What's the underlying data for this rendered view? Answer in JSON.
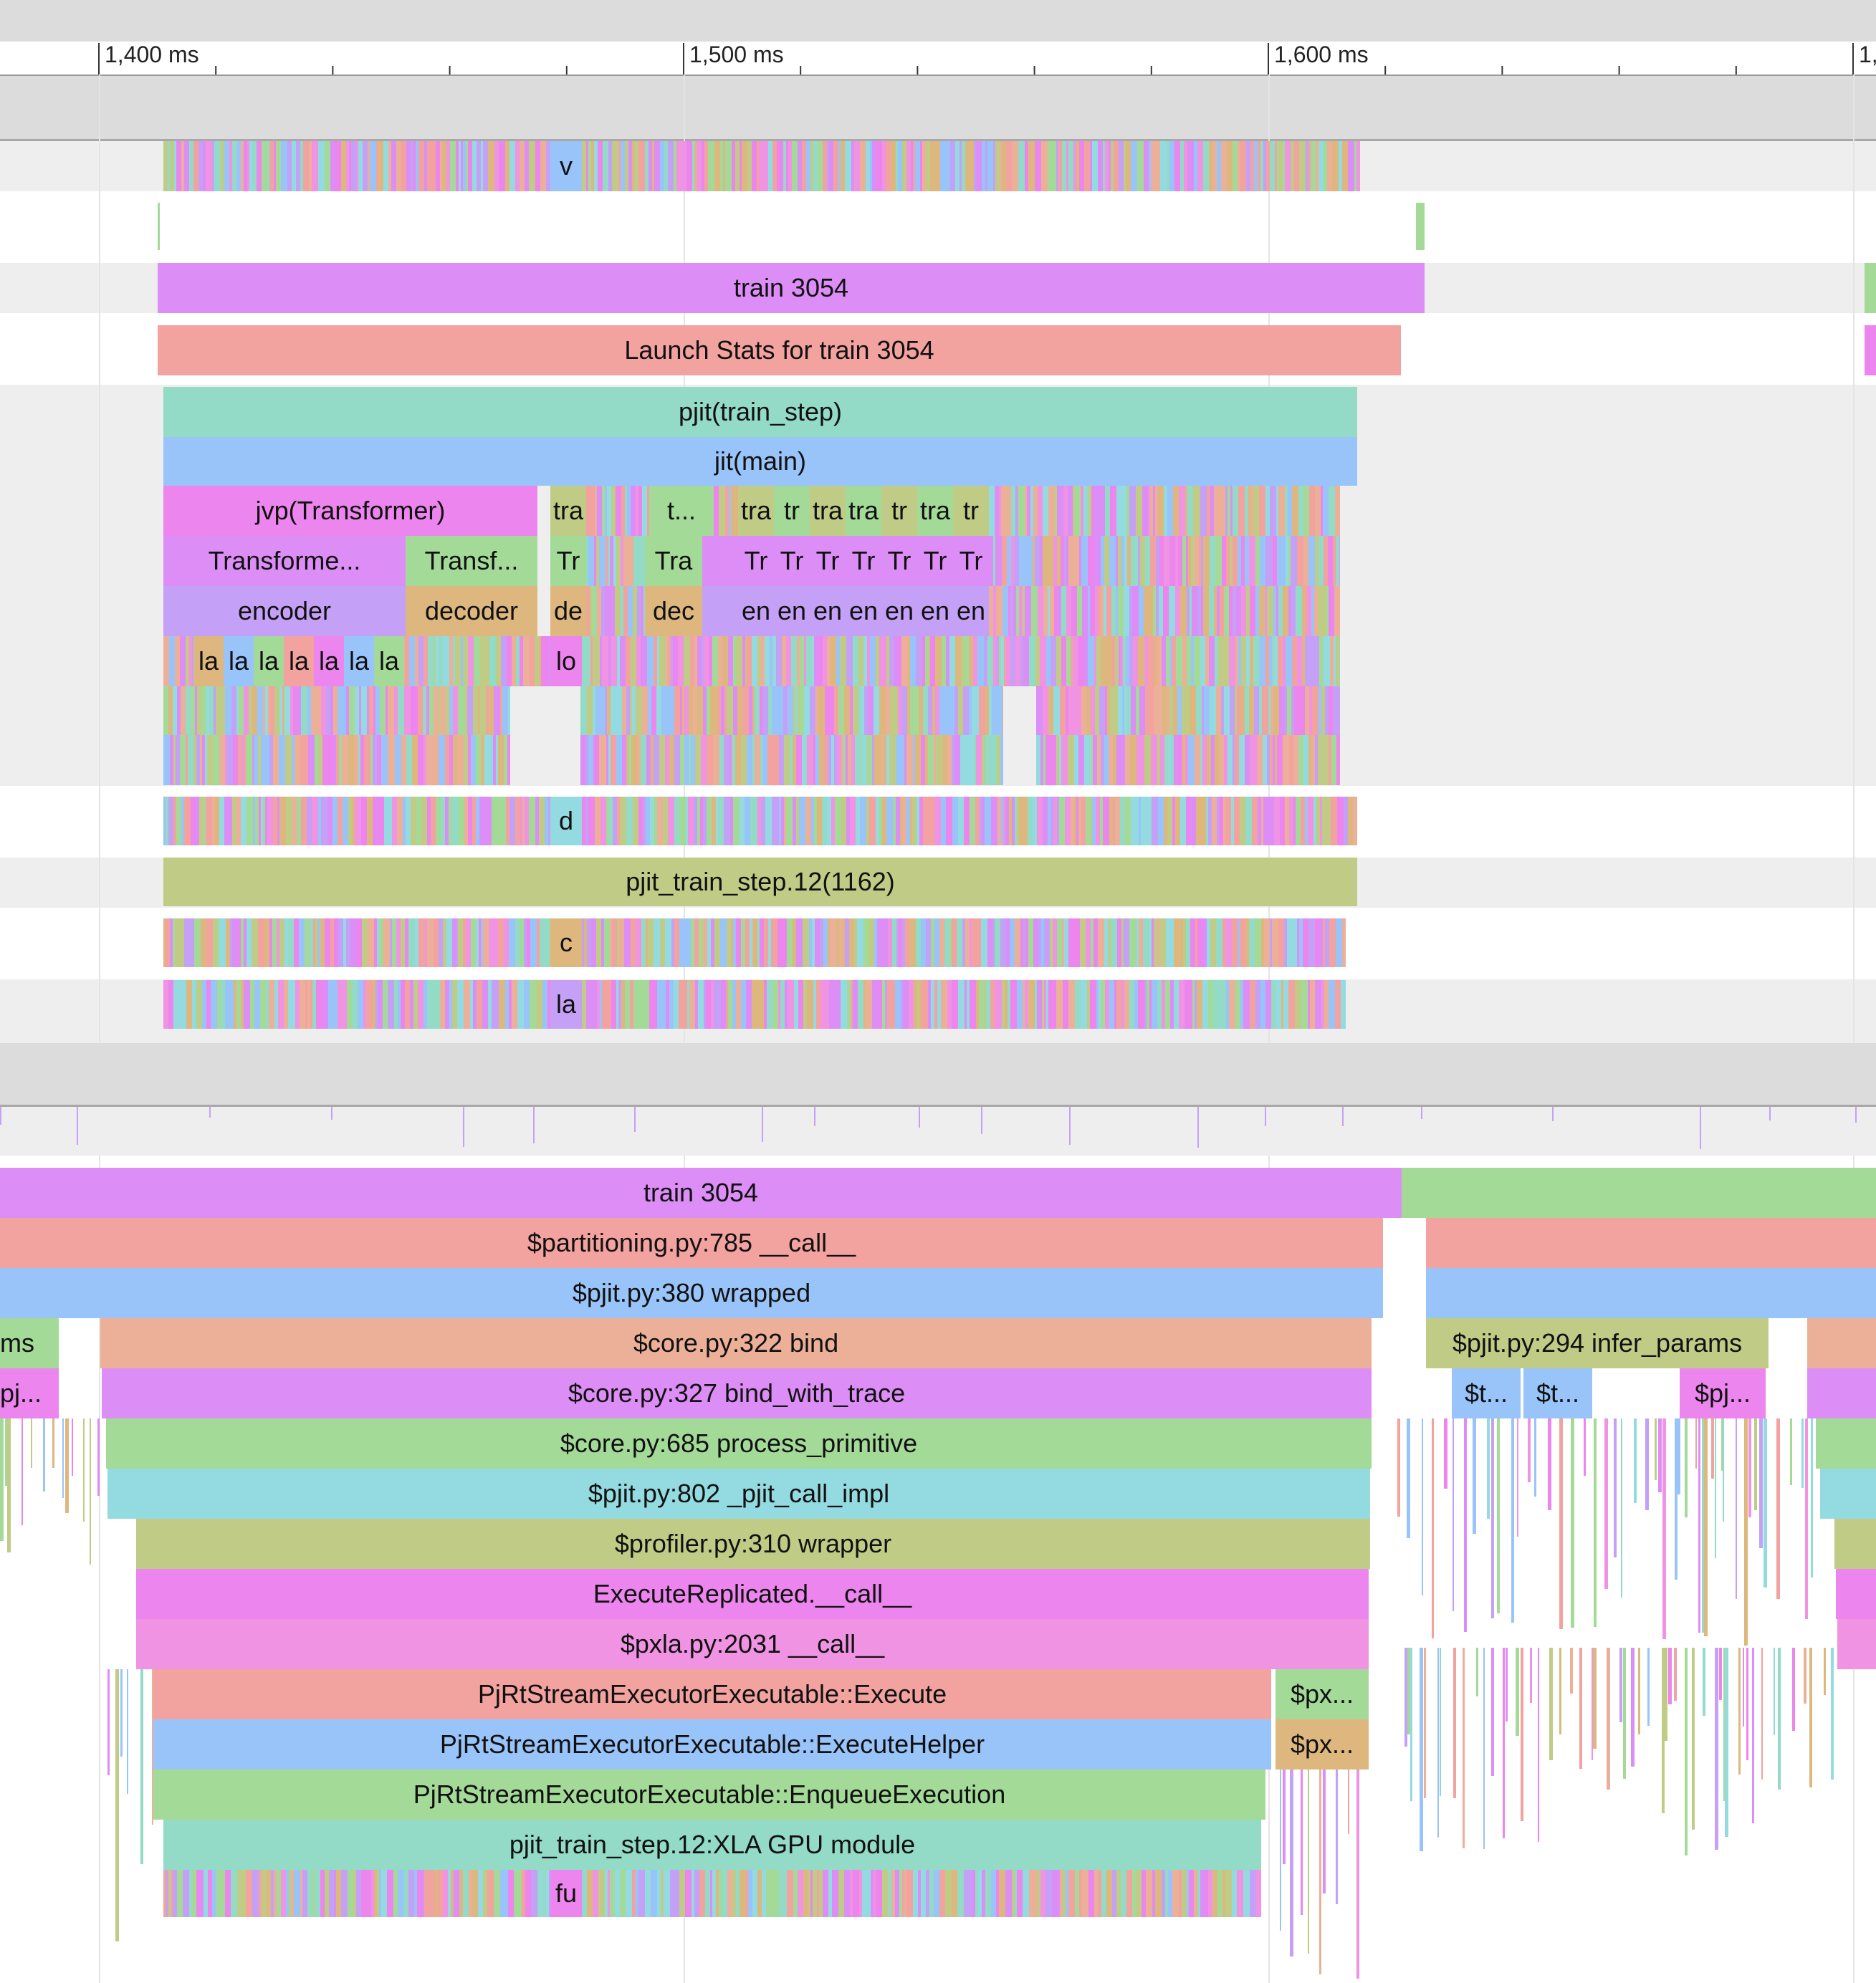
{
  "ruler": {
    "ticks": [
      "1,400 ms",
      "1,500 ms",
      "1,600 ms",
      "1,"
    ]
  },
  "track1": {
    "row_v": "v",
    "train": "train 3054",
    "launch_stats": "Launch Stats for train 3054",
    "pjit_train_step": "pjit(train_step)",
    "jit_main": "jit(main)",
    "jvp": "jvp(Transformer)",
    "row3_small": [
      "tra",
      "t...",
      "tra",
      "tr",
      "tra",
      "tra",
      "tr",
      "tra",
      "tr"
    ],
    "transformer1": "Transforme...",
    "transformer2": "Transf...",
    "row4_small": [
      "Tr",
      "Tra",
      "Tr",
      "Tr",
      "Tr",
      "Tr",
      "Tr",
      "Tr",
      "Tr"
    ],
    "encoder": "encoder",
    "decoder": "decoder",
    "row5_small": [
      "de",
      "dec",
      "en",
      "en",
      "en",
      "en",
      "en",
      "en",
      "en"
    ],
    "row6_small": [
      "la",
      "la",
      "la",
      "la",
      "la",
      "la",
      "la",
      "lo"
    ],
    "row_d": "d",
    "pjit_module": "pjit_train_step.12(1162)",
    "row_c": "c",
    "row_la": "la"
  },
  "track2": {
    "train": "train 3054",
    "partitioning": "$partitioning.py:785 __call__",
    "pjit_wrapped": "$pjit.py:380 wrapped",
    "ms_left": "ms",
    "core_bind": "$core.py:322 bind",
    "infer_params": "$pjit.py:294 infer_params",
    "pj_left": "pj...",
    "bind_with_trace": "$core.py:327 bind_with_trace",
    "t1": "$t...",
    "t2": "$t...",
    "pj_right": "$pj...",
    "process_primitive": "$core.py:685 process_primitive",
    "pjit_call_impl": "$pjit.py:802 _pjit_call_impl",
    "profiler_wrapper": "$profiler.py:310 wrapper",
    "execute_replicated": "ExecuteReplicated.__call__",
    "pxla_call": "$pxla.py:2031 __call__",
    "execute": "PjRtStreamExecutorExecutable::Execute",
    "px1": "$px...",
    "execute_helper": "PjRtStreamExecutorExecutable::ExecuteHelper",
    "px2": "$px...",
    "enqueue": "PjRtStreamExecutorExecutable::EnqueueExecution",
    "xla_module": "pjit_train_step.12:XLA GPU module",
    "fu": "fu"
  },
  "colors": {
    "purple": "#dc8ef6",
    "salmon": "#f3a39f",
    "teal": "#93dac7",
    "blue": "#99c4fa",
    "magenta": "#ec86ee",
    "lavender": "#c4a0f7",
    "olive": "#c0cc86",
    "green": "#a4da98",
    "tan": "#deb77f",
    "orange": "#ecb098",
    "cyan": "#93dbe0",
    "pink": "#f093e3"
  }
}
